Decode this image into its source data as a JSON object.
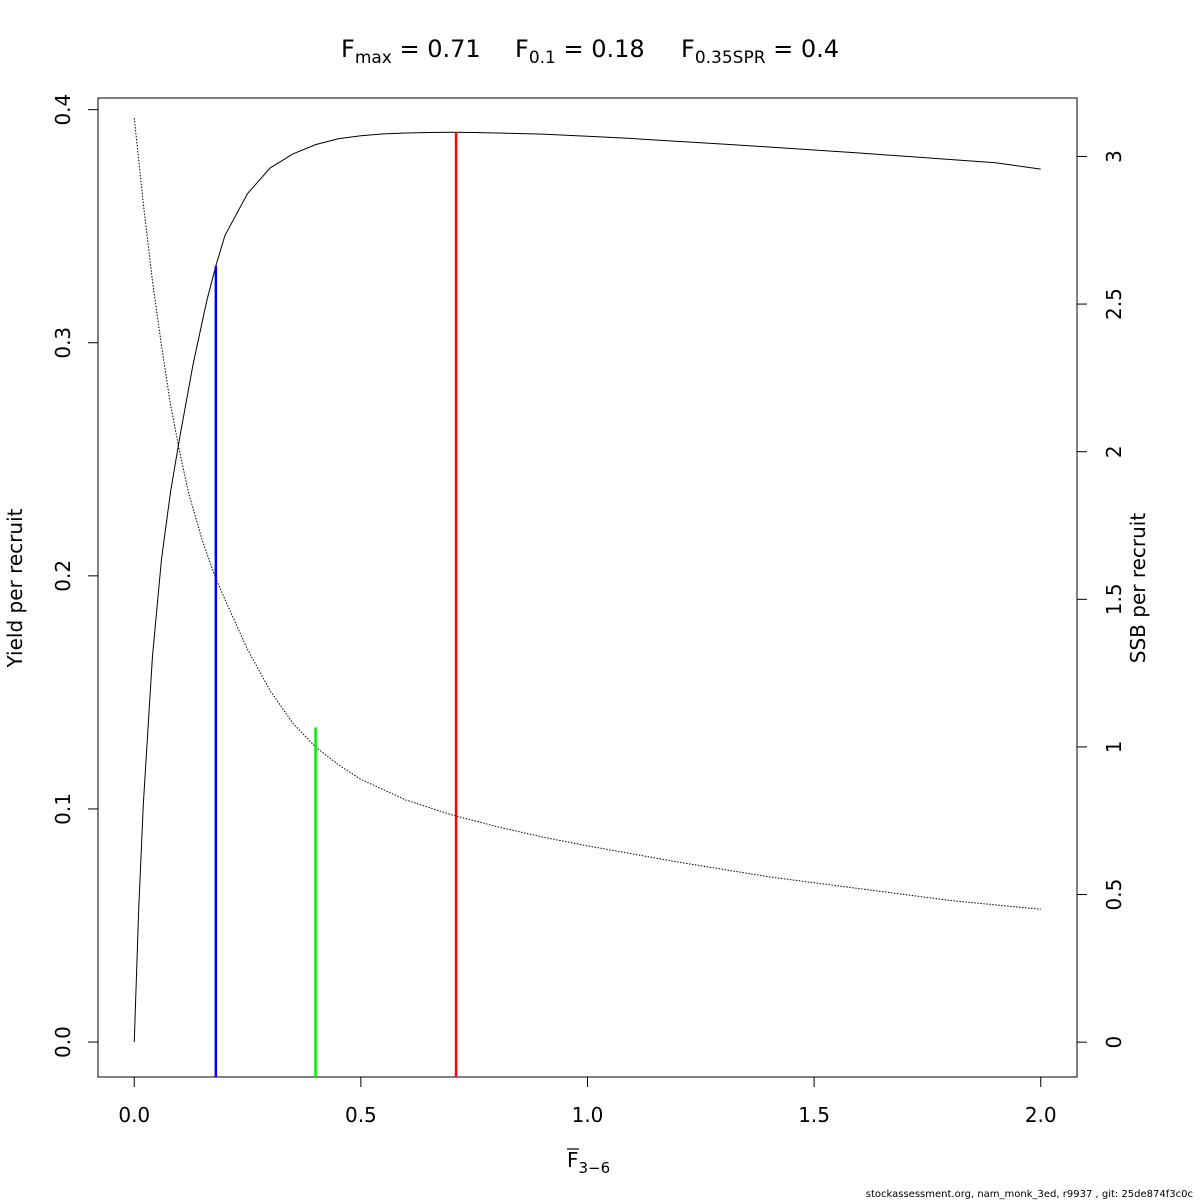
{
  "title": {
    "fmax": {
      "base": "F",
      "sub": "max",
      "rest": " = 0.71"
    },
    "f01": {
      "base": "F",
      "sub": "0.1",
      "rest": " = 0.18"
    },
    "fspr": {
      "base": "F",
      "sub": "0.35SPR",
      "rest": " = 0.4"
    }
  },
  "footer": "stockassessment.org, nam_monk_3ed, r9937 , git: 25de874f3c0c",
  "chart_data": {
    "type": "line",
    "xlabel": {
      "base": "F",
      "sub": "3−6"
    },
    "ylabel": "Yield per recruit",
    "y2label": "SSB per recruit",
    "xlim": [
      -0.08,
      2.08
    ],
    "ylim": [
      -0.015,
      0.405
    ],
    "y2lim": [
      -0.118,
      3.198
    ],
    "x_ticks": [
      0.0,
      0.5,
      1.0,
      1.5,
      2.0
    ],
    "x_tick_labels": [
      "0.0",
      "0.5",
      "1.0",
      "1.5",
      "2.0"
    ],
    "y_ticks": [
      0.0,
      0.1,
      0.2,
      0.3,
      0.4
    ],
    "y_tick_labels": [
      "0.0",
      "0.1",
      "0.2",
      "0.3",
      "0.4"
    ],
    "y2_ticks": [
      0,
      0.5,
      1,
      1.5,
      2,
      2.5,
      3
    ],
    "y2_tick_labels": [
      "0",
      "0.5",
      "1",
      "1.5",
      "2",
      "2.5",
      "3"
    ],
    "grid": false,
    "series": [
      {
        "name": "",
        "axis": "left",
        "style": "solid",
        "color": "#000000",
        "x": [
          0,
          0.01,
          0.02,
          0.04,
          0.06,
          0.08,
          0.1,
          0.13,
          0.16,
          0.18,
          0.2,
          0.25,
          0.3,
          0.35,
          0.4,
          0.45,
          0.5,
          0.55,
          0.6,
          0.65,
          0.7,
          0.75,
          0.8,
          0.9,
          1.0,
          1.1,
          1.2,
          1.3,
          1.4,
          1.5,
          1.6,
          1.7,
          1.8,
          1.9,
          2.0
        ],
        "y": [
          0,
          0.058,
          0.102,
          0.165,
          0.207,
          0.236,
          0.259,
          0.291,
          0.318,
          0.333,
          0.346,
          0.364,
          0.375,
          0.381,
          0.385,
          0.3875,
          0.3888,
          0.3896,
          0.39,
          0.3902,
          0.3903,
          0.3902,
          0.39,
          0.3895,
          0.3886,
          0.3876,
          0.3864,
          0.3852,
          0.384,
          0.3827,
          0.3814,
          0.38,
          0.3786,
          0.3772,
          0.3745
        ]
      },
      {
        "name": "",
        "axis": "right",
        "style": "dotted",
        "color": "#000000",
        "x": [
          0,
          0.02,
          0.04,
          0.06,
          0.08,
          0.1,
          0.12,
          0.15,
          0.18,
          0.2,
          0.25,
          0.3,
          0.35,
          0.4,
          0.45,
          0.5,
          0.6,
          0.7,
          0.8,
          0.9,
          1.0,
          1.2,
          1.4,
          1.6,
          1.8,
          2.0
        ],
        "y": [
          3.13,
          2.84,
          2.58,
          2.36,
          2.16,
          2.0,
          1.86,
          1.7,
          1.57,
          1.5,
          1.33,
          1.19,
          1.08,
          1.0,
          0.94,
          0.89,
          0.82,
          0.77,
          0.73,
          0.695,
          0.665,
          0.61,
          0.56,
          0.52,
          0.48,
          0.45
        ]
      }
    ],
    "reference_lines": [
      {
        "name": "F0.1",
        "x": 0.18,
        "y_top": 0.333,
        "color": "#0000ff"
      },
      {
        "name": "F0.35SPR",
        "x": 0.4,
        "y_top": 0.135,
        "color": "#00ee00"
      },
      {
        "name": "Fmax",
        "x": 0.71,
        "y_top": 0.3903,
        "color": "#ff0000"
      }
    ]
  }
}
